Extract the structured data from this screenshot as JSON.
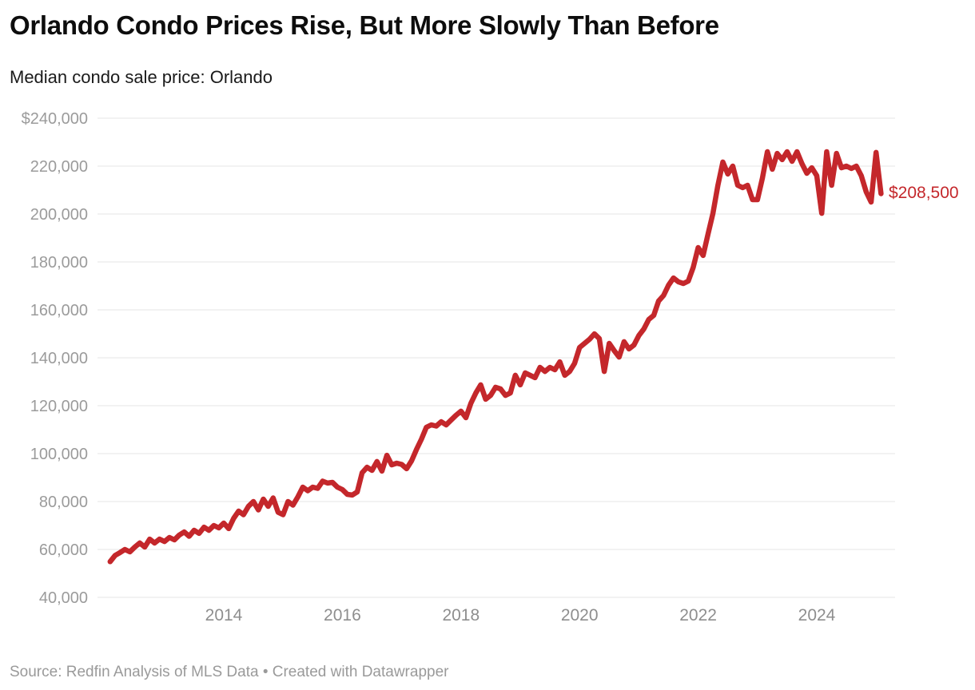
{
  "header": {
    "title": "Orlando Condo Prices Rise, But More Slowly Than Before",
    "subtitle": "Median condo sale price: Orlando"
  },
  "footer": {
    "text": "Source: Redfin Analysis of MLS Data • Created with Datawrapper"
  },
  "chart_data": {
    "type": "line",
    "title": "Orlando Condo Prices Rise, But More Slowly Than Before",
    "subtitle": "Median condo sale price: Orlando",
    "series_name": "Median condo sale price: Orlando",
    "frequency": "monthly",
    "x_start": "2012-02",
    "x_end": "2025-02",
    "values": [
      54900,
      57500,
      58700,
      60000,
      59000,
      61000,
      62700,
      61000,
      64300,
      62700,
      64300,
      63300,
      65000,
      64000,
      66000,
      67300,
      65500,
      68000,
      66700,
      69300,
      68000,
      70000,
      69000,
      71000,
      68700,
      73000,
      76000,
      74500,
      78000,
      80000,
      76500,
      81000,
      78000,
      81500,
      75500,
      74500,
      80000,
      78500,
      82000,
      86000,
      84500,
      86000,
      85500,
      88500,
      87700,
      88000,
      86000,
      85000,
      83000,
      82700,
      84000,
      92000,
      94300,
      93000,
      96700,
      92700,
      99300,
      95300,
      96000,
      95500,
      93700,
      97000,
      101700,
      106000,
      111000,
      112000,
      111500,
      113300,
      112000,
      114000,
      116000,
      117700,
      115000,
      121000,
      125300,
      128700,
      122700,
      124300,
      127700,
      127000,
      124300,
      125300,
      132700,
      128700,
      133700,
      132700,
      131700,
      136000,
      134300,
      136000,
      135000,
      138300,
      132700,
      134300,
      137700,
      144300,
      146000,
      147700,
      150000,
      148000,
      134300,
      146000,
      143000,
      140300,
      146700,
      143700,
      145300,
      149300,
      152000,
      156000,
      157700,
      163700,
      166000,
      170300,
      173300,
      171700,
      171000,
      172000,
      177700,
      186000,
      182700,
      191700,
      200300,
      212000,
      221700,
      216700,
      220000,
      212000,
      211000,
      212000,
      206000,
      206000,
      215000,
      226000,
      218700,
      225300,
      222700,
      226000,
      222000,
      226000,
      221000,
      217000,
      219300,
      216000,
      200300,
      226000,
      212000,
      225300,
      219300,
      220000,
      219000,
      220000,
      216000,
      209300,
      205000,
      225700,
      208500
    ],
    "last_value": 208500,
    "end_label": "$208,500",
    "y_ticks": [
      240000,
      220000,
      200000,
      180000,
      160000,
      140000,
      120000,
      100000,
      80000,
      60000,
      40000
    ],
    "y_tick_labels": [
      "$240,000",
      "220,000",
      "200,000",
      "180,000",
      "160,000",
      "140,000",
      "120,000",
      "100,000",
      "80,000",
      "60,000",
      "40,000"
    ],
    "x_ticks": [
      2014,
      2016,
      2018,
      2020,
      2022,
      2024
    ],
    "ylim": [
      40000,
      240000
    ],
    "grid": true,
    "legend": "none",
    "line_color": "#c4272b",
    "end_label_color": "#c4272b",
    "axis_label_color": "#9b9b9b",
    "grid_color": "#e4e4e4"
  }
}
